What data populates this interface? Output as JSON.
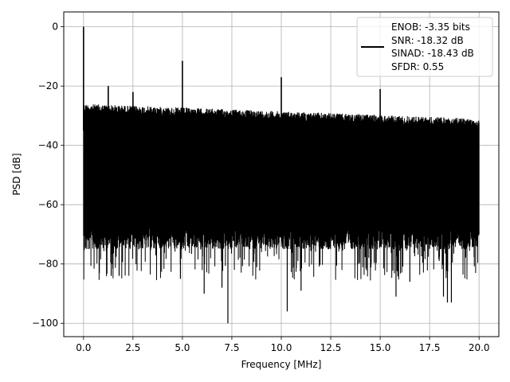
{
  "chart_data": {
    "type": "line",
    "title": "",
    "xlabel": "Frequency [MHz]",
    "ylabel": "PSD [dB]",
    "xlim": [
      -1.0,
      21.0
    ],
    "ylim": [
      -104.5,
      5.0
    ],
    "xticks": [
      0.0,
      2.5,
      5.0,
      7.5,
      10.0,
      12.5,
      15.0,
      17.5,
      20.0
    ],
    "xtick_labels": [
      "0.0",
      "2.5",
      "5.0",
      "7.5",
      "10.0",
      "12.5",
      "15.0",
      "17.5",
      "20.0"
    ],
    "yticks": [
      0,
      -20,
      -40,
      -60,
      -80,
      -100
    ],
    "ytick_labels": [
      "0",
      "−20",
      "−40",
      "−60",
      "−80",
      "−100"
    ],
    "grid": true,
    "legend_position": "top-right",
    "series": [
      {
        "name": "ENOB: -3.35 bits\nSNR: -18.32 dB\nSINAD: -18.43 dB\nSFDR: 0.55",
        "color": "#000000",
        "noise_band": {
          "x_start": 0.0,
          "x_end": 20.0,
          "upper_start": -26,
          "upper_end": -31,
          "lower_typical": -70,
          "lower_min": -100
        },
        "spurs": [
          {
            "x": 0.0,
            "y": 0
          },
          {
            "x": 1.25,
            "y": -20
          },
          {
            "x": 2.5,
            "y": -22
          },
          {
            "x": 5.0,
            "y": -11.5
          },
          {
            "x": 10.0,
            "y": -17
          },
          {
            "x": 15.0,
            "y": -21
          }
        ],
        "deep_dips": [
          {
            "x": 7.3,
            "y": -100
          },
          {
            "x": 10.3,
            "y": -96
          },
          {
            "x": 6.1,
            "y": -90
          },
          {
            "x": 7.0,
            "y": -88
          },
          {
            "x": 11.0,
            "y": -89
          },
          {
            "x": 15.8,
            "y": -91
          },
          {
            "x": 18.4,
            "y": -93
          },
          {
            "x": 18.6,
            "y": -93
          },
          {
            "x": 18.2,
            "y": -91
          },
          {
            "x": 1.4,
            "y": -84
          },
          {
            "x": 0.8,
            "y": -83
          },
          {
            "x": 1.8,
            "y": -84
          },
          {
            "x": 16.5,
            "y": -86
          },
          {
            "x": 4.9,
            "y": -85
          }
        ]
      }
    ],
    "legend_lines": [
      "ENOB: -3.35 bits",
      "SNR: -18.32 dB",
      "SINAD: -18.43 dB",
      "SFDR: 0.55"
    ]
  }
}
